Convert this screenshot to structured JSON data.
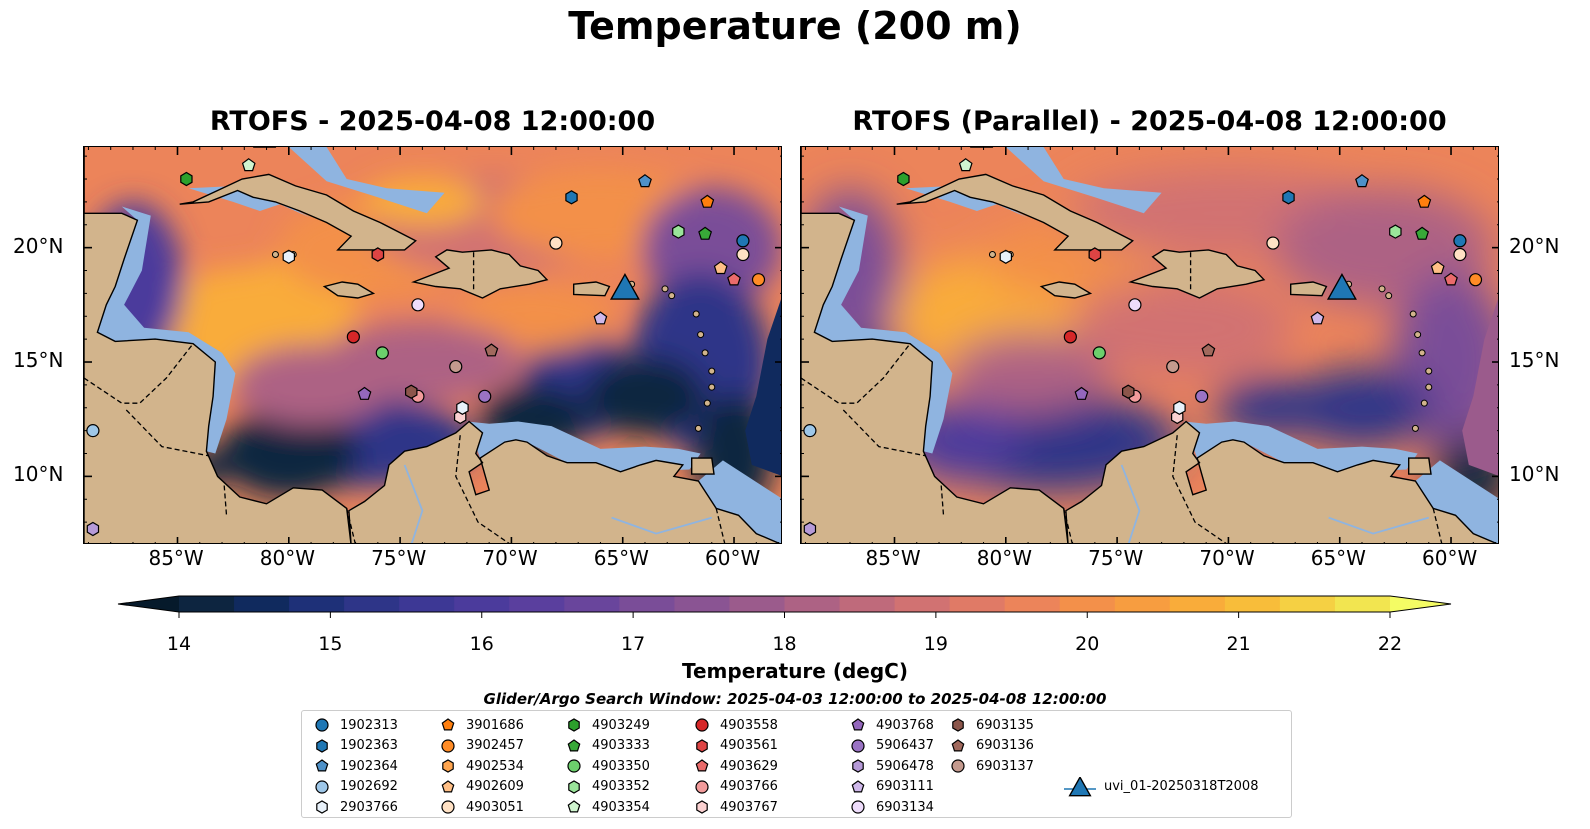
{
  "suptitle": "Temperature (200 m)",
  "panels": [
    {
      "title": "RTOFS - 2025-04-08 12:00:00"
    },
    {
      "title": "RTOFS (Parallel) - 2025-04-08 12:00:00"
    }
  ],
  "axes": {
    "lon_ticks": [
      "85°W",
      "80°W",
      "75°W",
      "70°W",
      "65°W",
      "60°W"
    ],
    "lon_values": [
      -85,
      -80,
      -75,
      -70,
      -65,
      -60
    ],
    "lat_ticks": [
      "20°N",
      "15°N",
      "10°N"
    ],
    "lat_values": [
      20,
      15,
      10
    ],
    "lon_range": [
      -89.2,
      -57.8
    ],
    "lat_range": [
      7.0,
      24.4
    ]
  },
  "colorbar": {
    "label": "Temperature (degC)",
    "ticks": [
      "14",
      "15",
      "16",
      "17",
      "18",
      "19",
      "20",
      "21",
      "22"
    ],
    "range": [
      14,
      22
    ],
    "colors": [
      "#0d2540",
      "#102a5e",
      "#1e3078",
      "#2e3588",
      "#3d3895",
      "#4b3b9c",
      "#5a3f9e",
      "#69459c",
      "#7a4d98",
      "#8a5493",
      "#9b5b8c",
      "#ad6284",
      "#bf6a7b",
      "#d17272",
      "#e07a66",
      "#ec845a",
      "#f3904a",
      "#f79d40",
      "#f9ac3a",
      "#f8bd3a",
      "#f5d043",
      "#f2e550"
    ],
    "extend_low": "#061a2b",
    "extend_high": "#f4fc64",
    "land": "#d2b48c",
    "shelf": "#8fb4e0",
    "deep": "#03233a"
  },
  "legend": {
    "title": "Glider/Argo Search Window: 2025-04-03 12:00:00 to 2025-04-08 12:00:00",
    "items": [
      {
        "label": "1902313",
        "shape": "circle",
        "color": "#1f77b4"
      },
      {
        "label": "1902363",
        "shape": "hexagon",
        "color": "#1f77b4"
      },
      {
        "label": "1902364",
        "shape": "pentagon",
        "color": "#4e91c8"
      },
      {
        "label": "1902692",
        "shape": "circle",
        "color": "#9ec7e8"
      },
      {
        "label": "2903766",
        "shape": "hexagon",
        "color": "#e8f1fa"
      },
      {
        "label": "3901686",
        "shape": "pentagon",
        "color": "#ff7f0e"
      },
      {
        "label": "3902457",
        "shape": "circle",
        "color": "#ff8c26"
      },
      {
        "label": "4902534",
        "shape": "hexagon",
        "color": "#ffa54f"
      },
      {
        "label": "4902609",
        "shape": "pentagon",
        "color": "#ffbf86"
      },
      {
        "label": "4903051",
        "shape": "circle",
        "color": "#ffe1c4"
      },
      {
        "label": "4903249",
        "shape": "hexagon",
        "color": "#2ca02c"
      },
      {
        "label": "4903333",
        "shape": "pentagon",
        "color": "#38a838"
      },
      {
        "label": "4903350",
        "shape": "circle",
        "color": "#6ccf6c"
      },
      {
        "label": "4903352",
        "shape": "hexagon",
        "color": "#9ae59a"
      },
      {
        "label": "4903354",
        "shape": "pentagon",
        "color": "#d0f5cf"
      },
      {
        "label": "4903558",
        "shape": "circle",
        "color": "#d62728"
      },
      {
        "label": "4903561",
        "shape": "hexagon",
        "color": "#dd4444"
      },
      {
        "label": "4903629",
        "shape": "pentagon",
        "color": "#ea6b6b"
      },
      {
        "label": "4903766",
        "shape": "circle",
        "color": "#f29b9b"
      },
      {
        "label": "4903767",
        "shape": "hexagon",
        "color": "#fbd1d1"
      },
      {
        "label": "4903768",
        "shape": "pentagon",
        "color": "#9467bd"
      },
      {
        "label": "5906437",
        "shape": "circle",
        "color": "#9a73c4"
      },
      {
        "label": "5906478",
        "shape": "hexagon",
        "color": "#b69ad8"
      },
      {
        "label": "6903111",
        "shape": "pentagon",
        "color": "#cfb8ea"
      },
      {
        "label": "6903134",
        "shape": "circle",
        "color": "#eedcfb"
      },
      {
        "label": "6903135",
        "shape": "hexagon",
        "color": "#8c564b"
      },
      {
        "label": "6903136",
        "shape": "pentagon",
        "color": "#a1695d"
      },
      {
        "label": "6903137",
        "shape": "circle",
        "color": "#c49a8e"
      },
      {
        "label": "uvi_01-20250318T2008",
        "shape": "triangle",
        "color": "#1f77b4"
      }
    ]
  },
  "platforms": [
    {
      "id": "1902313",
      "lon": -59.6,
      "lat": 20.3
    },
    {
      "id": "1902363",
      "lon": -67.3,
      "lat": 22.2
    },
    {
      "id": "1902364",
      "lon": -64.0,
      "lat": 22.9
    },
    {
      "id": "1902692",
      "lon": -88.8,
      "lat": 12.0
    },
    {
      "id": "2903766",
      "lon": -80.0,
      "lat": 19.6
    },
    {
      "id": "3901686",
      "lon": -61.2,
      "lat": 22.0
    },
    {
      "id": "3902457",
      "lon": -58.9,
      "lat": 18.6
    },
    {
      "id": "4902534",
      "lon": -76.0,
      "lat": 19.7
    },
    {
      "id": "4902609",
      "lon": -60.6,
      "lat": 19.1
    },
    {
      "id": "4903051",
      "lon": -59.6,
      "lat": 19.7
    },
    {
      "id": "4903249",
      "lon": -84.6,
      "lat": 23.0
    },
    {
      "id": "4903333",
      "lon": -61.3,
      "lat": 20.6
    },
    {
      "id": "4903350",
      "lon": -75.8,
      "lat": 15.4
    },
    {
      "id": "4903352",
      "lon": -62.5,
      "lat": 20.7
    },
    {
      "id": "4903354",
      "lon": -81.8,
      "lat": 23.6
    },
    {
      "id": "4903558",
      "lon": -77.1,
      "lat": 16.1
    },
    {
      "id": "4903561",
      "lon": -76.0,
      "lat": 19.7
    },
    {
      "id": "4903629",
      "lon": -60.0,
      "lat": 18.6
    },
    {
      "id": "4903766",
      "lon": -74.2,
      "lat": 13.5
    },
    {
      "id": "4903767",
      "lon": -72.3,
      "lat": 12.6
    },
    {
      "id": "4903768",
      "lon": -76.6,
      "lat": 13.6
    },
    {
      "id": "5906437",
      "lon": -71.2,
      "lat": 13.5
    },
    {
      "id": "5906478",
      "lon": -88.8,
      "lat": 7.7
    },
    {
      "id": "6903111",
      "lon": -66.0,
      "lat": 16.9
    },
    {
      "id": "6903134",
      "lon": -74.2,
      "lat": 17.5
    },
    {
      "id": "6903135",
      "lon": -74.5,
      "lat": 13.7
    },
    {
      "id": "6903136",
      "lon": -70.9,
      "lat": 15.5
    },
    {
      "id": "6903137",
      "lon": -72.5,
      "lat": 14.8
    },
    {
      "id": "2903766b",
      "lon": -72.2,
      "lat": 13.0
    },
    {
      "id": "4903051b",
      "lon": -68.0,
      "lat": 20.2
    },
    {
      "id": "uvi_01-20250318T2008",
      "lon": -64.9,
      "lat": 18.2
    }
  ]
}
